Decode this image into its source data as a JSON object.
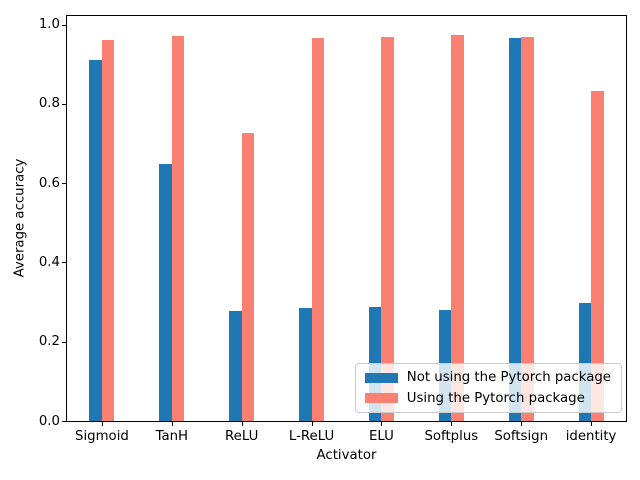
{
  "chart_data": {
    "type": "bar",
    "title": "",
    "xlabel": "Activator",
    "ylabel": "Average accuracy",
    "categories": [
      "Sigmoid",
      "TanH",
      "ReLU",
      "L-ReLU",
      "ELU",
      "Softplus",
      "Softsign",
      "identity"
    ],
    "series": [
      {
        "name": "Not using the Pytorch package",
        "color": "#1f77b4",
        "values": [
          0.912,
          0.648,
          0.277,
          0.284,
          0.287,
          0.279,
          0.966,
          0.299
        ]
      },
      {
        "name": "Using the Pytorch package",
        "color": "#fa8072",
        "values": [
          0.962,
          0.971,
          0.727,
          0.966,
          0.97,
          0.973,
          0.969,
          0.833
        ]
      }
    ],
    "ylim": [
      0,
      1.022
    ],
    "yticks": [
      0.0,
      0.2,
      0.4,
      0.6,
      0.8,
      1.0
    ],
    "ytick_labels": [
      "0.0",
      "0.2",
      "0.4",
      "0.6",
      "0.8",
      "1.0"
    ],
    "legend_position": "lower right",
    "grid": false,
    "colors": {
      "axis": "#000000",
      "legend_border": "#cccccc",
      "background": "#ffffff"
    }
  }
}
